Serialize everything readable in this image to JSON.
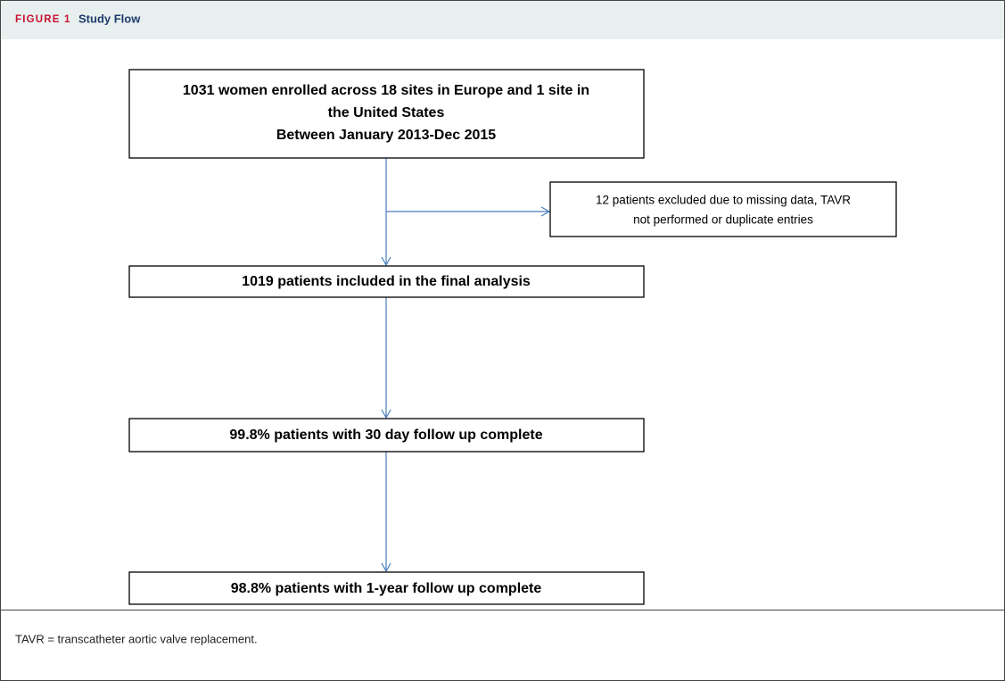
{
  "header": {
    "label": "FIGURE 1",
    "title": "Study Flow"
  },
  "nodes": [
    {
      "lines": [
        "1031 women enrolled across 18 sites in Europe and 1 site in",
        "the United States",
        "Between January 2013-Dec 2015"
      ]
    },
    {
      "lines": [
        "12 patients excluded due to missing data, TAVR",
        "not performed or duplicate entries"
      ]
    },
    {
      "lines": [
        "1019 patients included in the final analysis"
      ]
    },
    {
      "lines": [
        "99.8% patients with 30 day follow up complete"
      ]
    },
    {
      "lines": [
        "98.8% patients with 1-year follow up complete"
      ]
    }
  ],
  "footnote": "TAVR = transcatheter aortic valve replacement."
}
